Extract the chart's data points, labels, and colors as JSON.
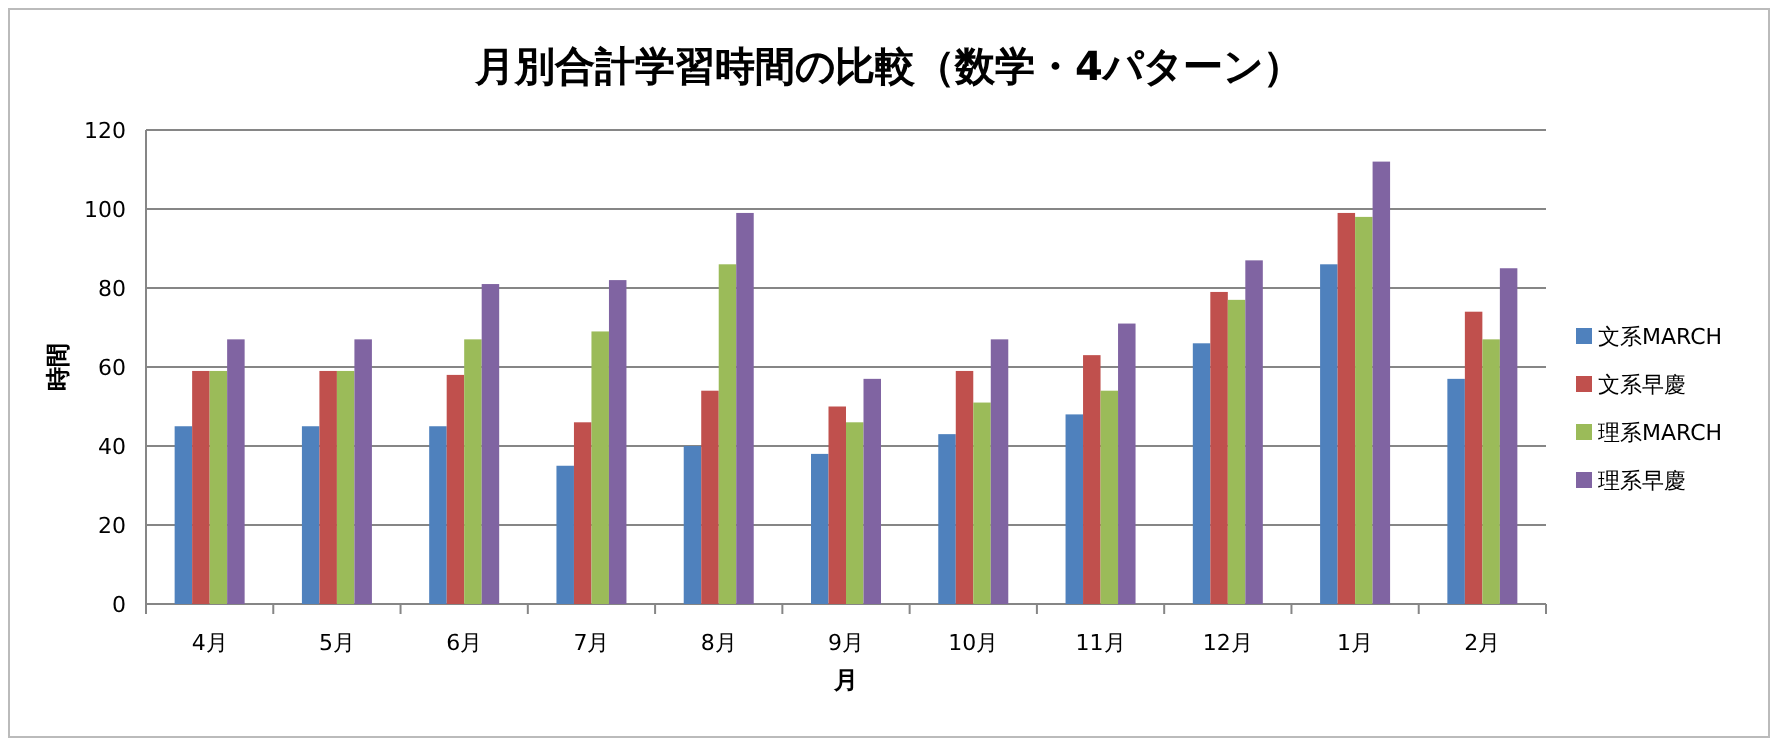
{
  "chart_data": {
    "type": "bar",
    "title": "月別合計学習時間の比較（数学・4パターン）",
    "xlabel": "月",
    "ylabel": "時間",
    "categories": [
      "4月",
      "5月",
      "6月",
      "7月",
      "8月",
      "9月",
      "10月",
      "11月",
      "12月",
      "1月",
      "2月"
    ],
    "series": [
      {
        "name": "文系MARCH",
        "color": "#4f81bd",
        "values": [
          45,
          45,
          45,
          35,
          40,
          38,
          43,
          48,
          66,
          86,
          57
        ]
      },
      {
        "name": "文系早慶",
        "color": "#c0504d",
        "values": [
          59,
          59,
          58,
          46,
          54,
          50,
          59,
          63,
          79,
          99,
          74
        ]
      },
      {
        "name": "理系MARCH",
        "color": "#9bbb59",
        "values": [
          59,
          59,
          67,
          69,
          86,
          46,
          51,
          54,
          77,
          98,
          67
        ]
      },
      {
        "name": "理系早慶",
        "color": "#8064a2",
        "values": [
          67,
          67,
          81,
          82,
          99,
          57,
          67,
          71,
          87,
          112,
          85
        ]
      }
    ],
    "ylim": [
      0,
      120
    ],
    "yticks": [
      0,
      20,
      40,
      60,
      80,
      100,
      120
    ],
    "grid": "y",
    "legend": "right"
  }
}
